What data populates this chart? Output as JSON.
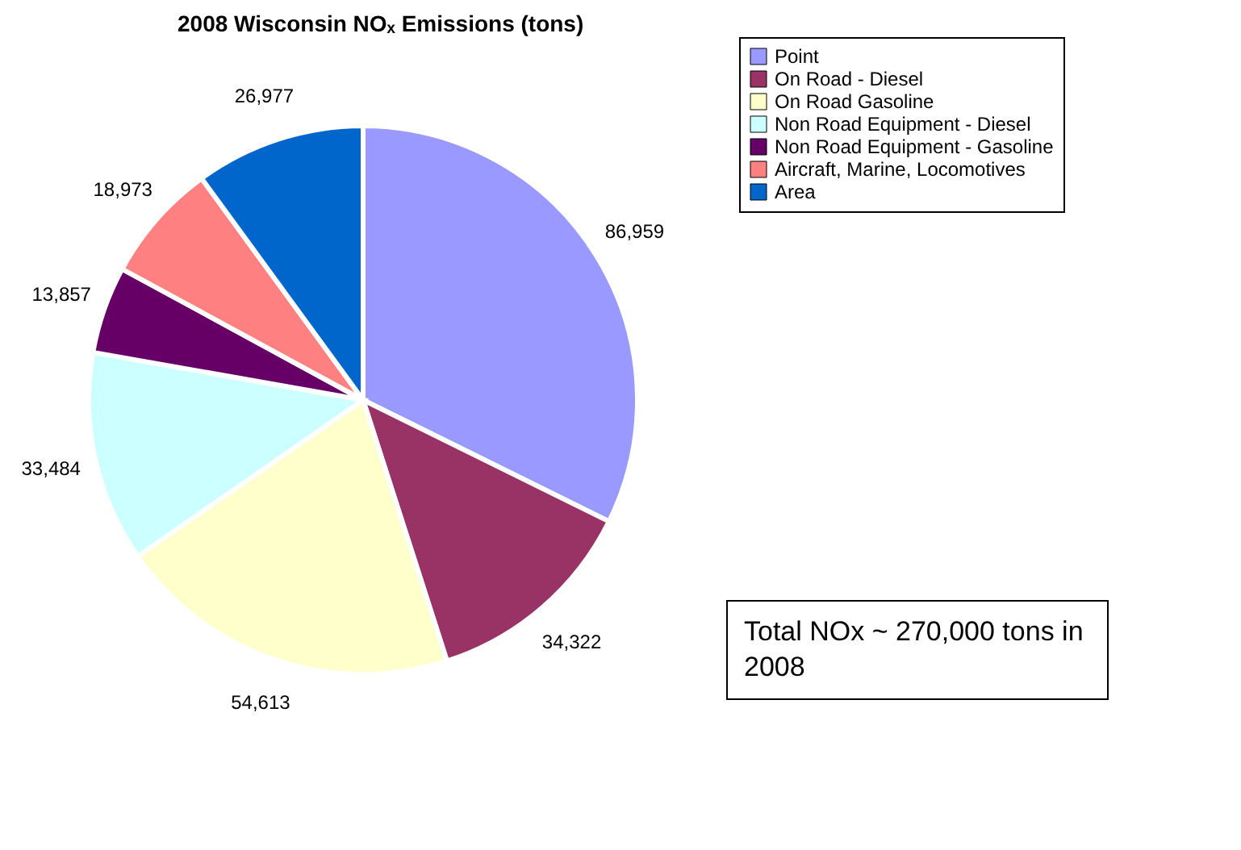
{
  "chart_data": {
    "type": "pie",
    "title": "2008 Wisconsin NOₓ Emissions (tons)",
    "categories": [
      "Point",
      "On Road - Diesel",
      "On Road Gasoline",
      "Non Road Equipment - Diesel",
      "Non Road Equipment - Gasoline",
      "Aircraft, Marine, Locomotives",
      "Area"
    ],
    "values": [
      86959,
      34322,
      54613,
      33484,
      13857,
      18973,
      26977
    ],
    "colors": [
      "#9999ff",
      "#993366",
      "#ffffcc",
      "#ccffff",
      "#660066",
      "#ff8080",
      "#0066cc"
    ],
    "value_labels": [
      "86,959",
      "34,322",
      "54,613",
      "33,484",
      "13,857",
      "18,973",
      "26,977"
    ],
    "legend": "top right",
    "annotations": [
      "Total NOx ~ 270,000 tons in 2008"
    ]
  }
}
